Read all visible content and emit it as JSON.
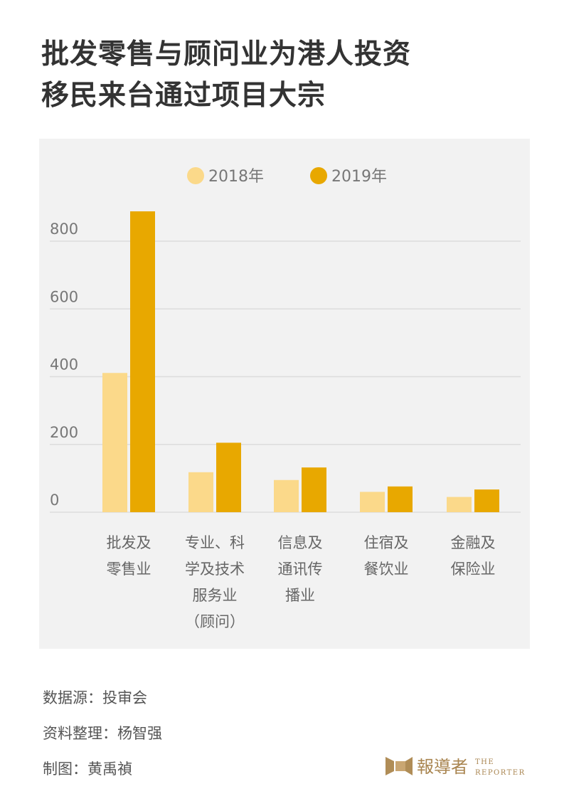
{
  "title_lines": [
    "批发零售与顾问业为港人投资",
    "移民来台通过项目大宗"
  ],
  "footer": {
    "source": "数据源：投审会",
    "compiled": "资料整理：杨智强",
    "graphic": "制图：黄禹禎"
  },
  "logo": {
    "text": "報導者 THE REPORTER"
  },
  "colors": {
    "s2018": "#fbd98a",
    "s2019": "#e8a800",
    "panel": "#f2f2f2",
    "grid": "#dcdcdc"
  },
  "chart_data": {
    "type": "bar",
    "categories": [
      [
        "批发及",
        "零售业"
      ],
      [
        "专业、科",
        "学及技术",
        "服务业",
        "（顾问）"
      ],
      [
        "信息及",
        "通讯传",
        "播业"
      ],
      [
        "住宿及",
        "餐饮业"
      ],
      [
        "金融及",
        "保险业"
      ]
    ],
    "series": [
      {
        "name": "2018年",
        "values": [
          411,
          118,
          95,
          60,
          45
        ]
      },
      {
        "name": "2019年",
        "values": [
          888,
          205,
          132,
          76,
          67
        ]
      }
    ],
    "yticks": [
      "0",
      "200",
      "400",
      "600",
      "800"
    ],
    "ylim": [
      0,
      900
    ],
    "grid": true,
    "legend": "top-center"
  }
}
